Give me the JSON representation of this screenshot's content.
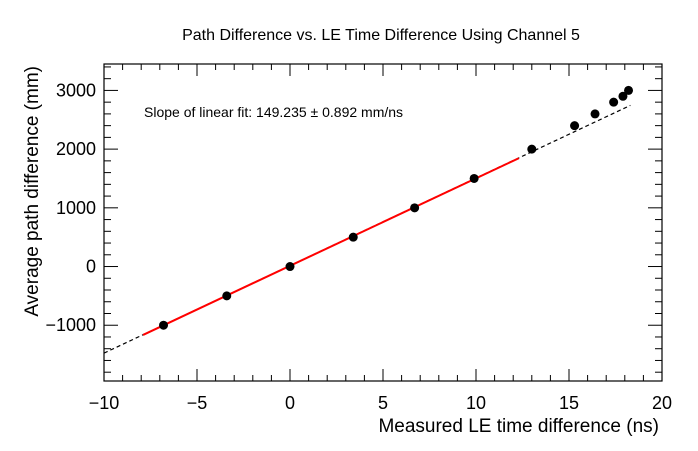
{
  "chart_data": {
    "type": "scatter",
    "title": "Path Difference vs. LE Time Difference Using Channel 5",
    "xlabel": "Measured LE time difference (ns)",
    "ylabel": "Average path difference (mm)",
    "xlim": [
      -10,
      20
    ],
    "ylim": [
      -1950,
      3450
    ],
    "x_ticks": [
      -10,
      -5,
      0,
      5,
      10,
      15,
      20
    ],
    "y_ticks": [
      -1000,
      0,
      1000,
      2000,
      3000
    ],
    "x_tick_labels": [
      "−10",
      "−5",
      "0",
      "5",
      "10",
      "15",
      "20"
    ],
    "y_tick_labels": [
      "−1000",
      "0",
      "1000",
      "2000",
      "3000"
    ],
    "grid": false,
    "annotation": "Slope of linear fit: 149.235 ± 0.892  mm/ns",
    "series": [
      {
        "kind": "points",
        "color": "#000000",
        "x": [
          -6.8,
          -3.4,
          0.0,
          3.4,
          6.7,
          9.9,
          13.0,
          15.3,
          16.4,
          17.4,
          17.9,
          18.2
        ],
        "y": [
          -1000,
          -500,
          0,
          500,
          1000,
          1500,
          2000,
          2400,
          2600,
          2800,
          2900,
          3000
        ]
      },
      {
        "kind": "fit-line",
        "color": "#ff0000",
        "x": [
          -7.9,
          12.3
        ],
        "y": [
          -1165,
          1845
        ]
      },
      {
        "kind": "extrapolation",
        "color": "#000000",
        "x": [
          -10,
          18.3
        ],
        "y": [
          -1475,
          2745
        ]
      }
    ]
  }
}
